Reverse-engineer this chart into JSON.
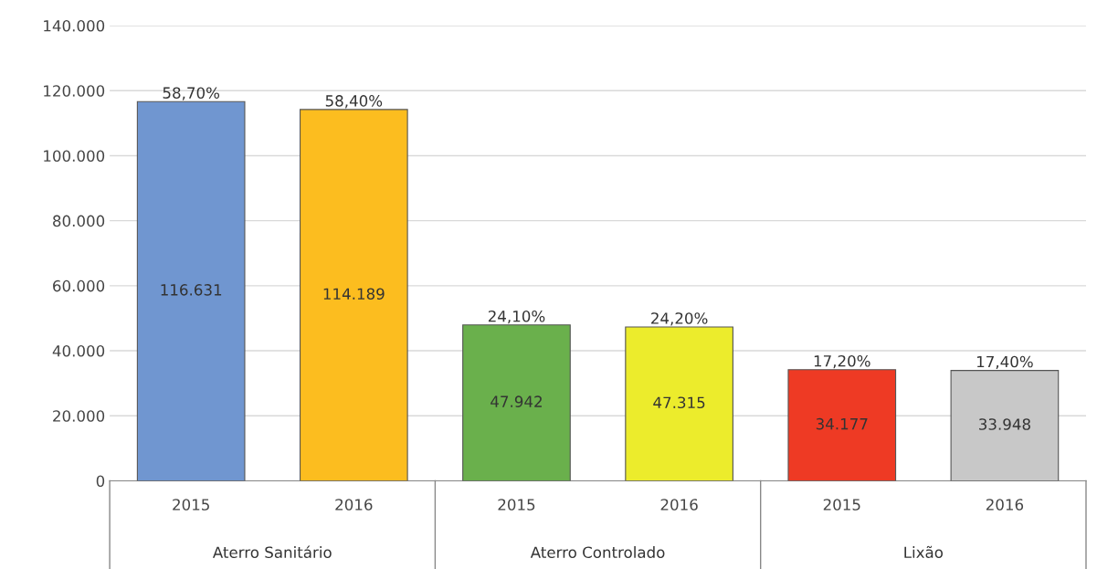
{
  "chart_data": {
    "type": "bar",
    "categories": [
      "2015",
      "2016",
      "2015",
      "2016",
      "2015",
      "2016"
    ],
    "values": [
      116631,
      114189,
      47942,
      47315,
      34177,
      33948
    ],
    "colors": [
      "#7096d0",
      "#fcbd1f",
      "#6ab04c",
      "#ecec2c",
      "#ee3a24",
      "#c8c8c8"
    ],
    "value_labels": [
      "116.631",
      "114.189",
      "47.942",
      "47.315",
      "34.177",
      "33.948"
    ],
    "ylim": [
      0,
      140000
    ],
    "yticks": [
      0,
      {
        "value": 20000,
        "label": "20.000"
      },
      {
        "value": 40000,
        "label": "40.000"
      },
      {
        "value": 60000,
        "label": "60.000"
      },
      {
        "value": 80000,
        "label": "80.000"
      },
      {
        "value": 100000,
        "label": "100.000"
      },
      {
        "value": 120000,
        "label": "120.000"
      },
      {
        "value": 140000,
        "label": "140.000"
      }
    ],
    "grid": "y",
    "annotations": [
      {
        "text": "58,70%",
        "y": 116631
      },
      {
        "text": "58,40%",
        "y": 114189
      },
      {
        "text": "24,10%",
        "y": 47942
      },
      {
        "text": "24,20%",
        "y": 47315
      },
      {
        "text": "17,20%",
        "y": 34177
      },
      {
        "text": "17,40%",
        "y": 33948
      },
      "Aterro Sanitário",
      "Aterro Controlado",
      "Lixão"
    ]
  }
}
